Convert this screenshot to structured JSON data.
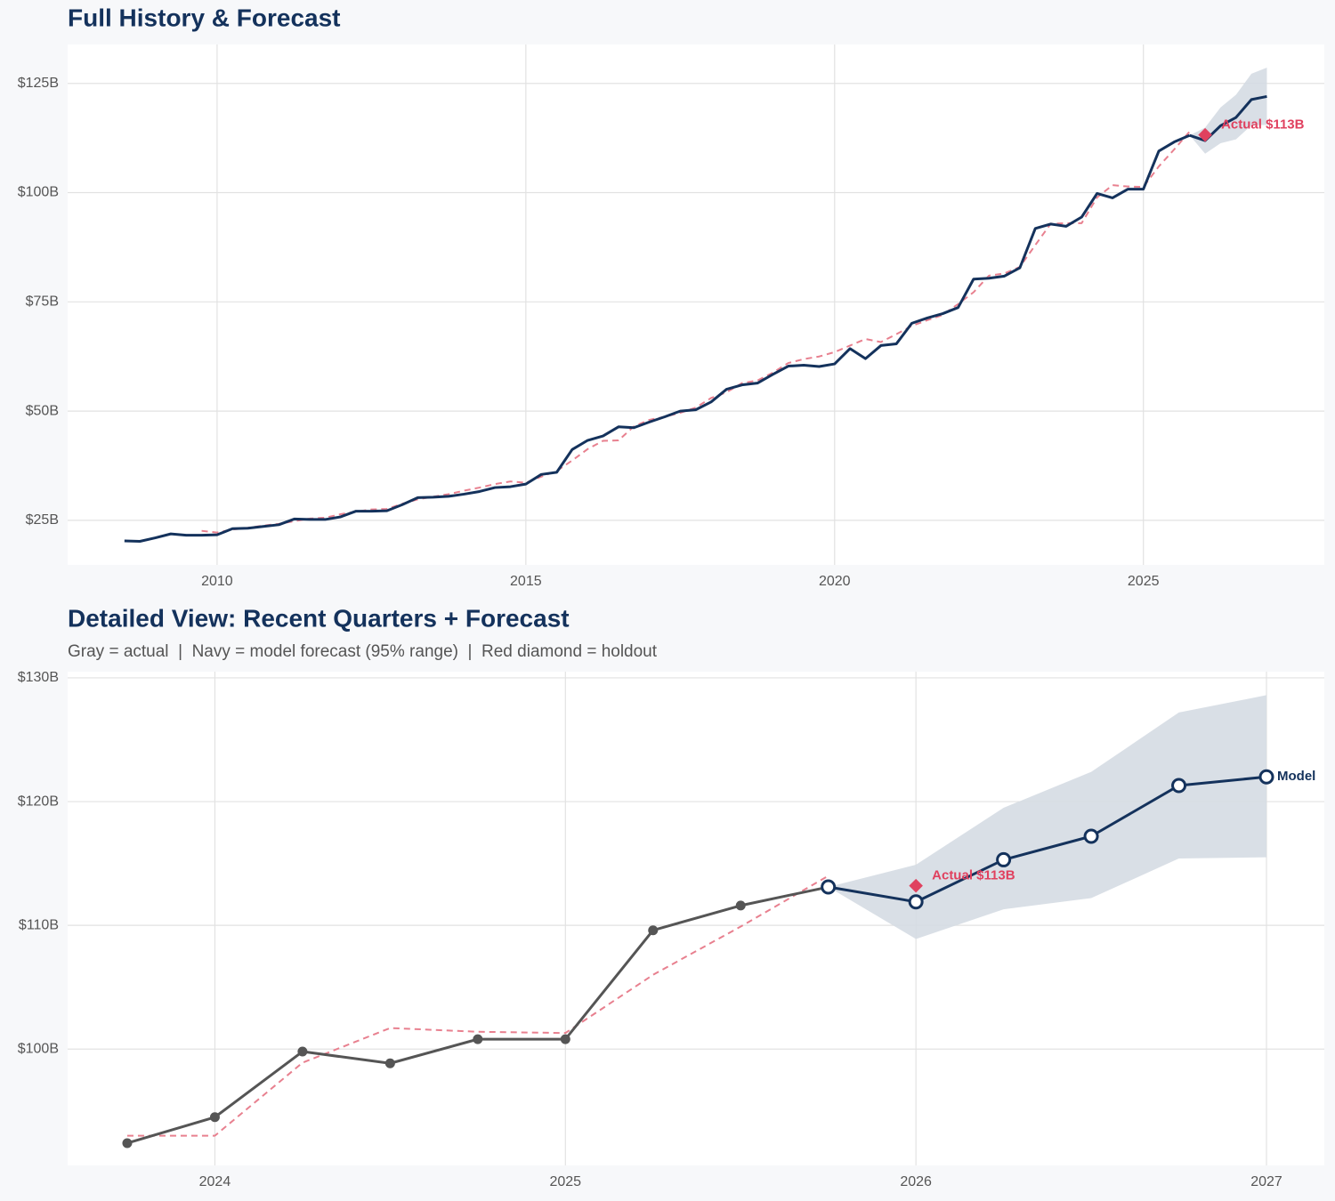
{
  "chart_data": [
    {
      "type": "line",
      "title": "Full History & Forecast",
      "xlim": [
        2007.58,
        2027.93
      ],
      "ylim": [
        14.8,
        133.9
      ],
      "xticks": [
        2010,
        2015,
        2020,
        2025
      ],
      "yticks": [
        {
          "value": 25,
          "label": "$25B"
        },
        {
          "value": 50,
          "label": "$50B"
        },
        {
          "value": 75,
          "label": "$75B"
        },
        {
          "value": 100,
          "label": "$100B"
        },
        {
          "value": 125,
          "label": "$125B"
        }
      ],
      "grid": true,
      "band": {
        "color": "#d5dbe3",
        "x": [
          2025.75,
          2026,
          2026.25,
          2026.5,
          2026.75,
          2027
        ],
        "lower": [
          113.1,
          108.9,
          111.3,
          112.2,
          115.4,
          115.5
        ],
        "upper": [
          113.1,
          114.9,
          119.5,
          122.4,
          127.2,
          128.6
        ]
      },
      "series": [
        {
          "color": "#e8808f",
          "dash": true,
          "marker": "none",
          "x": [
            2009.75,
            2010,
            2010.25,
            2010.5,
            2010.75,
            2011,
            2011.25,
            2011.5,
            2011.75,
            2012,
            2012.25,
            2012.5,
            2012.75,
            2013,
            2013.25,
            2013.5,
            2013.75,
            2014,
            2014.25,
            2014.5,
            2014.75,
            2015,
            2015.25,
            2015.5,
            2015.75,
            2016,
            2016.25,
            2016.5,
            2016.75,
            2017,
            2017.25,
            2017.5,
            2017.75,
            2018,
            2018.25,
            2018.5,
            2018.75,
            2019,
            2019.25,
            2019.5,
            2019.75,
            2020,
            2020.25,
            2020.5,
            2020.75,
            2021,
            2021.25,
            2021.5,
            2021.75,
            2022,
            2022.25,
            2022.5,
            2022.75,
            2023,
            2023.25,
            2023.5,
            2023.75,
            2024,
            2024.25,
            2024.5,
            2024.75,
            2025,
            2025.25,
            2025.5,
            2025.75
          ],
          "values": [
            22.6,
            22.2,
            22.9,
            23.3,
            23.8,
            24.2,
            24.8,
            25.4,
            25.6,
            26.4,
            27.0,
            27.5,
            27.6,
            28.8,
            29.8,
            30.4,
            31.0,
            31.8,
            32.5,
            33.3,
            33.9,
            33.6,
            35.0,
            36.3,
            38.7,
            41.3,
            43.2,
            43.3,
            46.5,
            48.0,
            48.7,
            49.6,
            50.8,
            53.0,
            54.3,
            56.4,
            57.0,
            58.8,
            61.0,
            61.9,
            62.5,
            63.5,
            65.0,
            66.5,
            65.8,
            67.6,
            69.5,
            70.8,
            72.0,
            74.5,
            77.2,
            81.0,
            81.5,
            83.0,
            88.0,
            92.9,
            93.0,
            93.0,
            98.9,
            101.7,
            101.4,
            101.3,
            106.0,
            109.9,
            114.0
          ]
        },
        {
          "color": "#14325c",
          "dash": false,
          "marker": "none",
          "x": [
            2008.5,
            2008.75,
            2009,
            2009.25,
            2009.5,
            2009.75,
            2010,
            2010.25,
            2010.5,
            2010.75,
            2011,
            2011.25,
            2011.5,
            2011.75,
            2012,
            2012.25,
            2012.5,
            2012.75,
            2013,
            2013.25,
            2013.5,
            2013.75,
            2014,
            2014.25,
            2014.5,
            2014.75,
            2015,
            2015.25,
            2015.5,
            2015.75,
            2016,
            2016.25,
            2016.5,
            2016.75,
            2017,
            2017.25,
            2017.5,
            2017.75,
            2018,
            2018.25,
            2018.5,
            2018.75,
            2019,
            2019.25,
            2019.5,
            2019.75,
            2020,
            2020.25,
            2020.5,
            2020.75,
            2021,
            2021.25,
            2021.5,
            2021.75,
            2022,
            2022.25,
            2022.5,
            2022.75,
            2023,
            2023.25,
            2023.5,
            2023.75,
            2024,
            2024.25,
            2024.5,
            2024.75,
            2025,
            2025.25,
            2025.5,
            2025.75
          ],
          "values": [
            20.3,
            20.2,
            21.0,
            21.9,
            21.6,
            21.6,
            21.7,
            23.1,
            23.2,
            23.6,
            24.0,
            25.3,
            25.2,
            25.2,
            25.8,
            27.1,
            27.1,
            27.2,
            28.6,
            30.2,
            30.3,
            30.5,
            31.0,
            31.6,
            32.5,
            32.7,
            33.3,
            35.5,
            36.0,
            41.2,
            43.3,
            44.3,
            46.4,
            46.2,
            47.5,
            48.7,
            50.0,
            50.3,
            52.1,
            55.0,
            56.0,
            56.4,
            58.4,
            60.3,
            60.5,
            60.2,
            60.8,
            64.3,
            62.0,
            65.0,
            65.4,
            70.1,
            71.3,
            72.3,
            73.7,
            80.2,
            80.4,
            80.9,
            82.8,
            91.8,
            92.8,
            92.3,
            94.4,
            99.8,
            98.8,
            100.8,
            100.8,
            109.5,
            111.6,
            113.1
          ]
        },
        {
          "color": "#14325c",
          "dash": false,
          "marker": "none",
          "x": [
            2025.75,
            2026,
            2026.25,
            2026.5,
            2026.75,
            2027
          ],
          "values": [
            113.1,
            111.9,
            115.3,
            117.2,
            121.3,
            122.0
          ]
        }
      ],
      "annotations": [
        {
          "x": 2026,
          "y": 113.2,
          "label": "Actual $113B",
          "color": "#e0415f"
        }
      ]
    },
    {
      "type": "line",
      "title": "Detailed View: Recent Quarters + Forecast",
      "subtitle": "Gray = actual  |  Navy = model forecast (95% range)  |  Red diamond = holdout",
      "xlim": [
        2023.58,
        2027.165
      ],
      "ylim": [
        90.6,
        130.5
      ],
      "xticks": [
        2024,
        2025,
        2026,
        2027
      ],
      "yticks": [
        {
          "value": 100,
          "label": "$100B"
        },
        {
          "value": 110,
          "label": "$110B"
        },
        {
          "value": 120,
          "label": "$120B"
        },
        {
          "value": 130,
          "label": "$130B"
        }
      ],
      "grid": true,
      "band": {
        "color": "#d5dbe3",
        "x": [
          2025.75,
          2026,
          2026.25,
          2026.5,
          2026.75,
          2027
        ],
        "lower": [
          113.1,
          108.9,
          111.3,
          112.2,
          115.4,
          115.5
        ],
        "upper": [
          113.1,
          114.9,
          119.5,
          122.4,
          127.2,
          128.6
        ]
      },
      "series": [
        {
          "color": "#e8808f",
          "dash": true,
          "marker": "none",
          "x": [
            2023.75,
            2024,
            2024.25,
            2024.5,
            2024.75,
            2025,
            2025.25,
            2025.5,
            2025.75
          ],
          "values": [
            93.0,
            93.0,
            98.9,
            101.7,
            101.4,
            101.3,
            106.0,
            109.9,
            114.0
          ]
        },
        {
          "color": "#555555",
          "dash": false,
          "marker": "dot",
          "x": [
            2023.75,
            2024,
            2024.25,
            2024.5,
            2024.75,
            2025,
            2025.25,
            2025.5,
            2025.75
          ],
          "values": [
            92.4,
            94.5,
            99.8,
            98.85,
            100.8,
            100.8,
            109.6,
            111.6,
            113.1
          ]
        },
        {
          "color": "#14325c",
          "dash": false,
          "marker": "open",
          "label": "Model",
          "x": [
            2025.75,
            2026,
            2026.25,
            2026.5,
            2026.75,
            2027
          ],
          "values": [
            113.1,
            111.9,
            115.3,
            117.2,
            121.3,
            122.0
          ]
        }
      ],
      "annotations": [
        {
          "x": 2026,
          "y": 113.2,
          "label": "Actual $113B",
          "color": "#e0415f"
        }
      ]
    }
  ]
}
